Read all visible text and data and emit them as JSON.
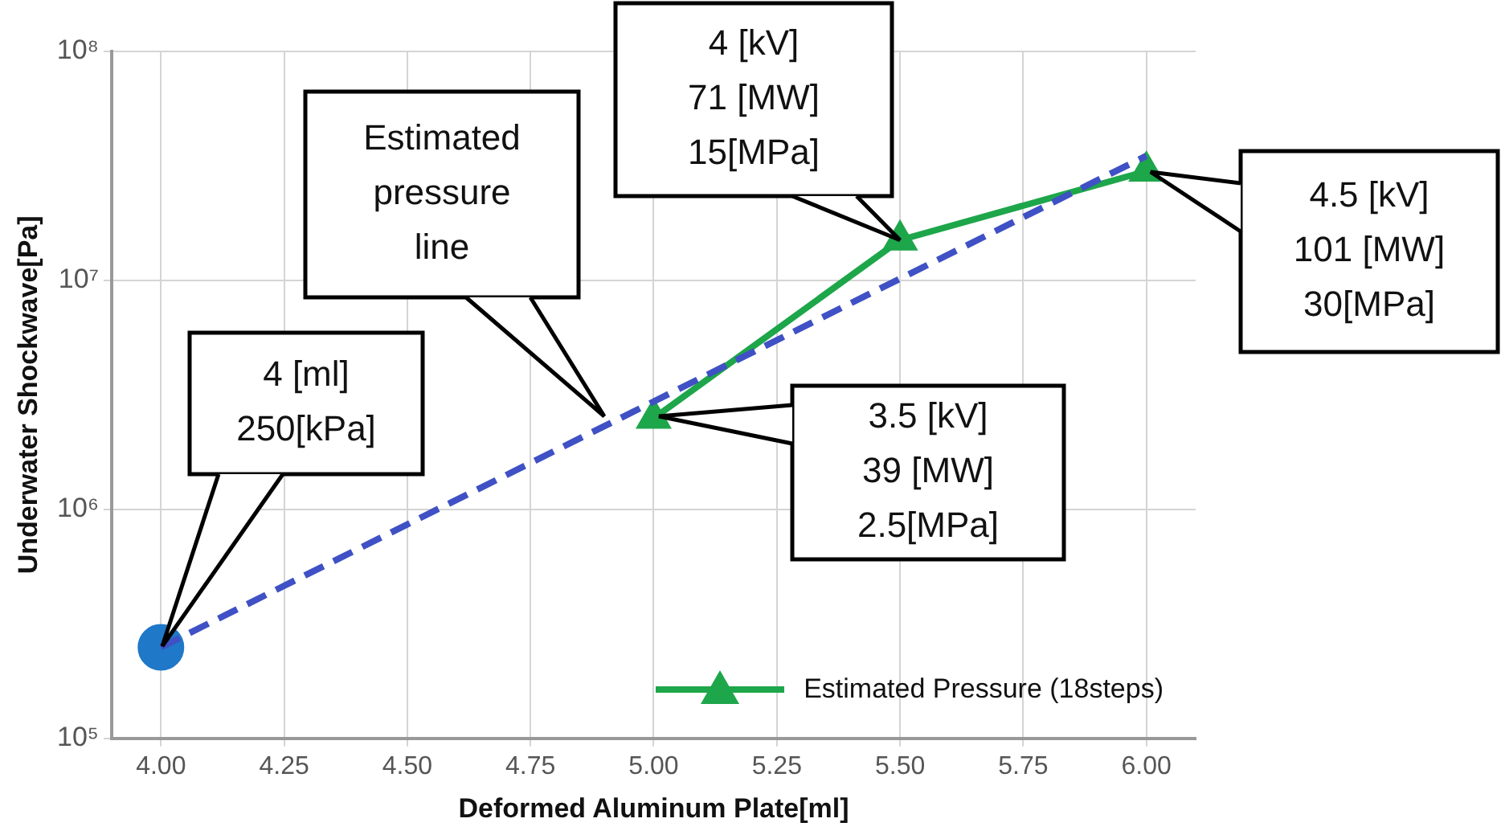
{
  "chart_data": {
    "type": "line",
    "xlabel": "Deformed Aluminum Plate[ml]",
    "ylabel": "Underwater Shockwave[Pa]",
    "xlim": [
      3.9,
      6.1
    ],
    "xticks": [
      {
        "value": 4,
        "label": "4.00"
      },
      {
        "value": 4.25,
        "label": "4.25"
      },
      {
        "value": 4.5,
        "label": "4.50"
      },
      {
        "value": 4.75,
        "label": "4.75"
      },
      {
        "value": 5,
        "label": "5.00"
      },
      {
        "value": 5.25,
        "label": "5.25"
      },
      {
        "value": 5.5,
        "label": "5.50"
      },
      {
        "value": 5.75,
        "label": "5.75"
      },
      {
        "value": 6,
        "label": "6.00"
      }
    ],
    "ylim": [
      100000,
      100000000
    ],
    "yticks": [
      {
        "value": 100000,
        "label": "10⁵"
      },
      {
        "value": 1000000,
        "label": "10⁶"
      },
      {
        "value": 10000000,
        "label": "10⁷"
      },
      {
        "value": 100000000,
        "label": "10⁸"
      }
    ],
    "log": "y",
    "grid": true,
    "legend": "bottom right",
    "series": [
      {
        "type": "line",
        "color": "#3f51c4",
        "x": [
          4,
          6
        ],
        "values": [
          250000,
          35000000
        ],
        "marker": "none",
        "line_style": "dashed"
      },
      {
        "type": "scatter",
        "color": "#1f78c8",
        "x": [
          4
        ],
        "values": [
          250000
        ],
        "marker": "circle"
      },
      {
        "type": "line",
        "name": "Estimated Pressure (18steps)",
        "color": "#1ea64a",
        "x": [
          5,
          5.5,
          6
        ],
        "values": [
          2500000,
          15000000,
          30000000
        ],
        "marker": "triangle",
        "line_style": "solid"
      }
    ],
    "annotations": [
      "4 [ml]\n250[kPa]",
      "Estimated\npressure\nline",
      {
        "text": "4 [kV]\n71 [MW]\n15[MPa]",
        "x": 5.5,
        "y": 15000000
      },
      "4.5 [kV]\n101 [MW]\n30[MPa]",
      "3.5 [kV]\n39 [MW]\n2.5[MPa]"
    ]
  }
}
